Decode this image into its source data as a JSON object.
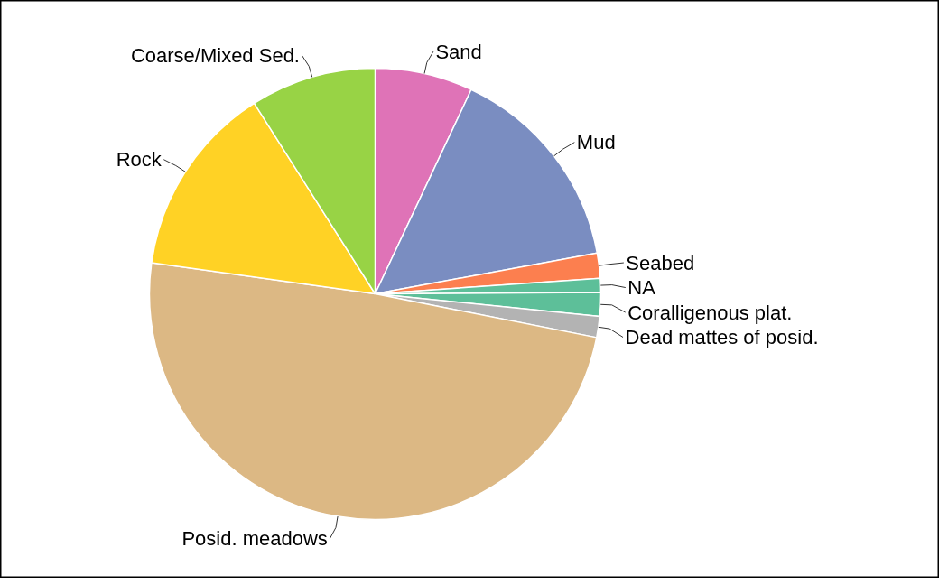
{
  "chart_data": {
    "type": "pie",
    "categories": [
      "Sand",
      "Mud",
      "Seabed",
      "NA",
      "Coralligenous plat.",
      "Dead mattes of posid.",
      "Posid. meadows",
      "Rock",
      "Coarse/Mixed Sed."
    ],
    "values": [
      7.0,
      15.1,
      1.8,
      1.0,
      1.7,
      1.5,
      49.1,
      13.8,
      9.0
    ],
    "colors": [
      "#df73b7",
      "#7a8dc1",
      "#fc7f4f",
      "#5dbf99",
      "#5dbf99",
      "#b3b3b3",
      "#dcb884",
      "#ffd225",
      "#98d345"
    ]
  }
}
